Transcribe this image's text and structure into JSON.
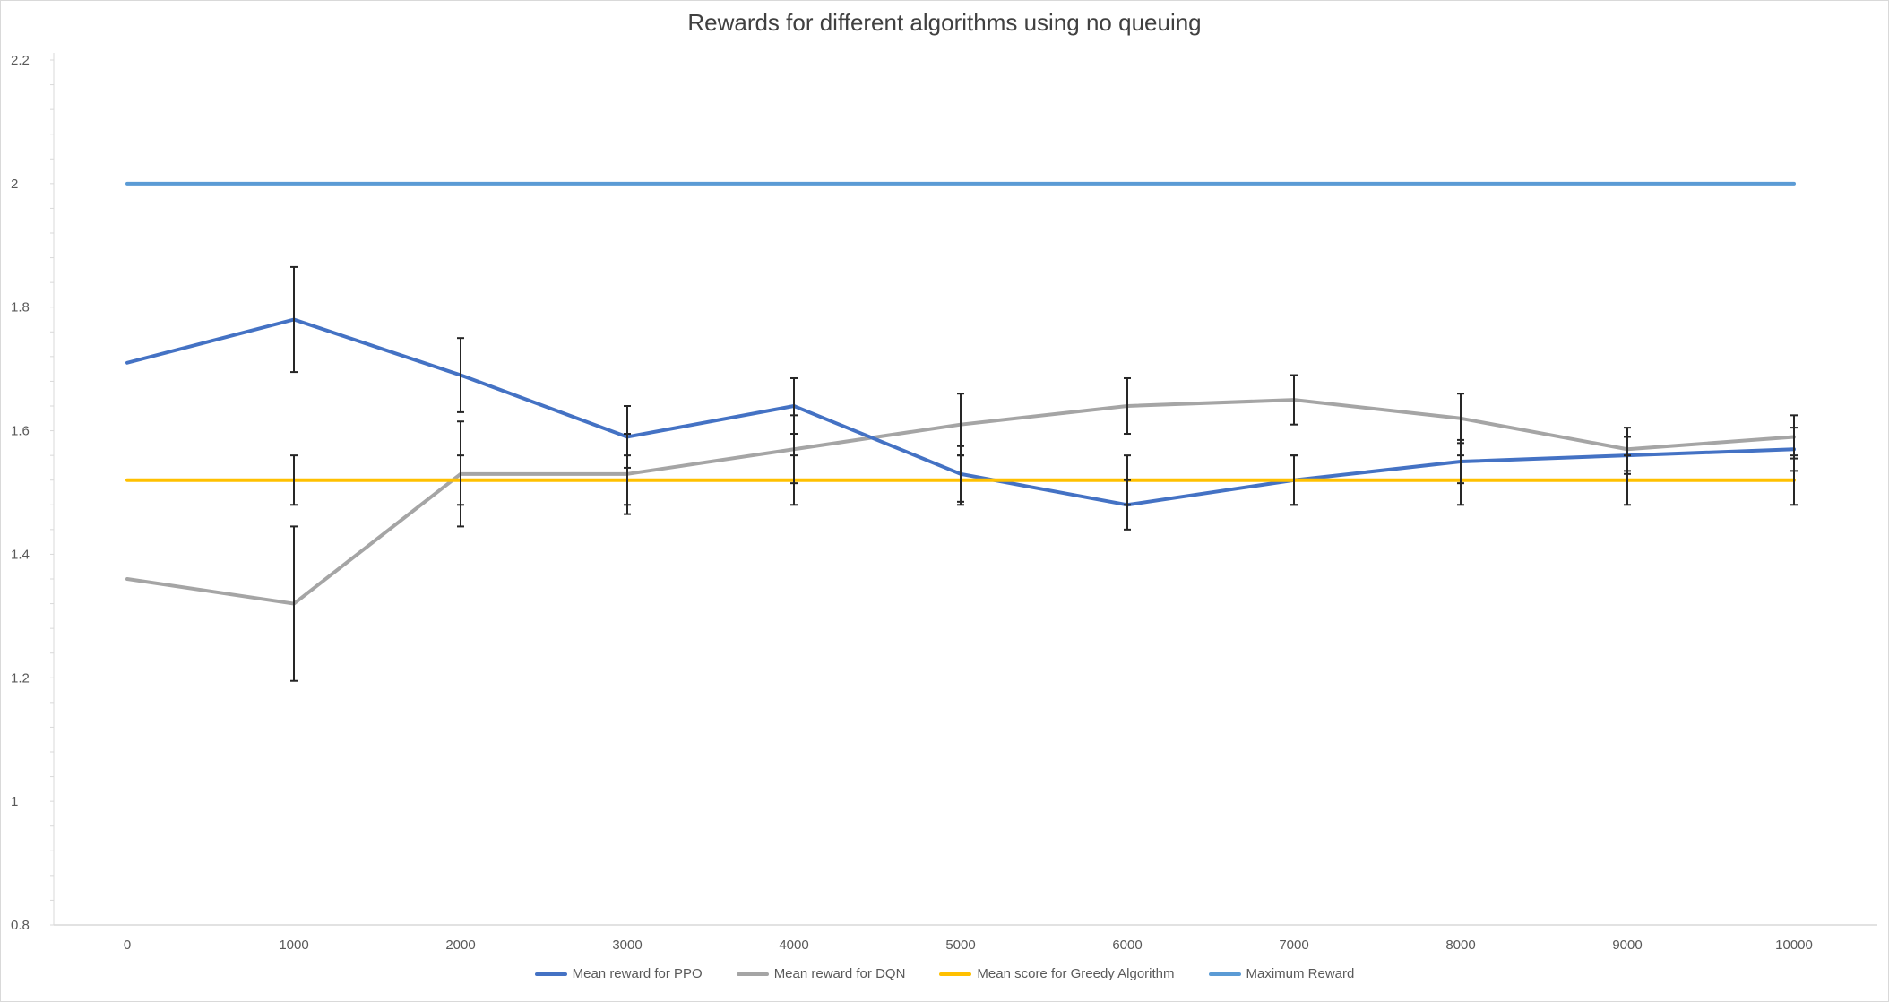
{
  "chart_data": {
    "type": "line",
    "title": "Rewards for different algorithms using no queuing",
    "xlabel": "",
    "ylabel": "",
    "x": [
      0,
      1000,
      2000,
      3000,
      4000,
      5000,
      6000,
      7000,
      8000,
      9000,
      10000
    ],
    "x_tick_labels": [
      "0",
      "1000",
      "2000",
      "3000",
      "4000",
      "5000",
      "6000",
      "7000",
      "8000",
      "9000",
      "10000"
    ],
    "y_tick_labels": [
      "0.8",
      "1",
      "1.2",
      "1.4",
      "1.6",
      "1.8",
      "2",
      "2.2"
    ],
    "ylim": [
      0.8,
      2.2
    ],
    "grid": false,
    "legend_position": "bottom",
    "series": [
      {
        "name": "Mean reward for PPO",
        "color": "#4472c4",
        "values": [
          1.71,
          1.78,
          1.69,
          1.59,
          1.64,
          1.53,
          1.48,
          1.52,
          1.55,
          1.56,
          1.57
        ],
        "error": [
          null,
          0.085,
          0.06,
          0.05,
          0.045,
          0.045,
          0.04,
          0.04,
          0.035,
          0.03,
          0.035
        ]
      },
      {
        "name": "Mean reward for DQN",
        "color": "#a5a5a5",
        "values": [
          1.36,
          1.32,
          1.53,
          1.53,
          1.57,
          1.61,
          1.64,
          1.65,
          1.62,
          1.57,
          1.59
        ],
        "error": [
          null,
          0.125,
          0.085,
          0.065,
          0.055,
          0.05,
          0.045,
          0.04,
          0.04,
          0.035,
          0.035
        ]
      },
      {
        "name": "Mean score for Greedy Algorithm",
        "color": "#ffc000",
        "values": [
          1.52,
          1.52,
          1.52,
          1.52,
          1.52,
          1.52,
          1.52,
          1.52,
          1.52,
          1.52,
          1.52
        ],
        "error": [
          null,
          0.04,
          0.04,
          0.04,
          0.04,
          0.04,
          0.04,
          0.04,
          0.04,
          0.04,
          0.04
        ]
      },
      {
        "name": "Maximum Reward",
        "color": "#5b9bd5",
        "values": [
          2,
          2,
          2,
          2,
          2,
          2,
          2,
          2,
          2,
          2,
          2
        ],
        "error": []
      }
    ]
  }
}
